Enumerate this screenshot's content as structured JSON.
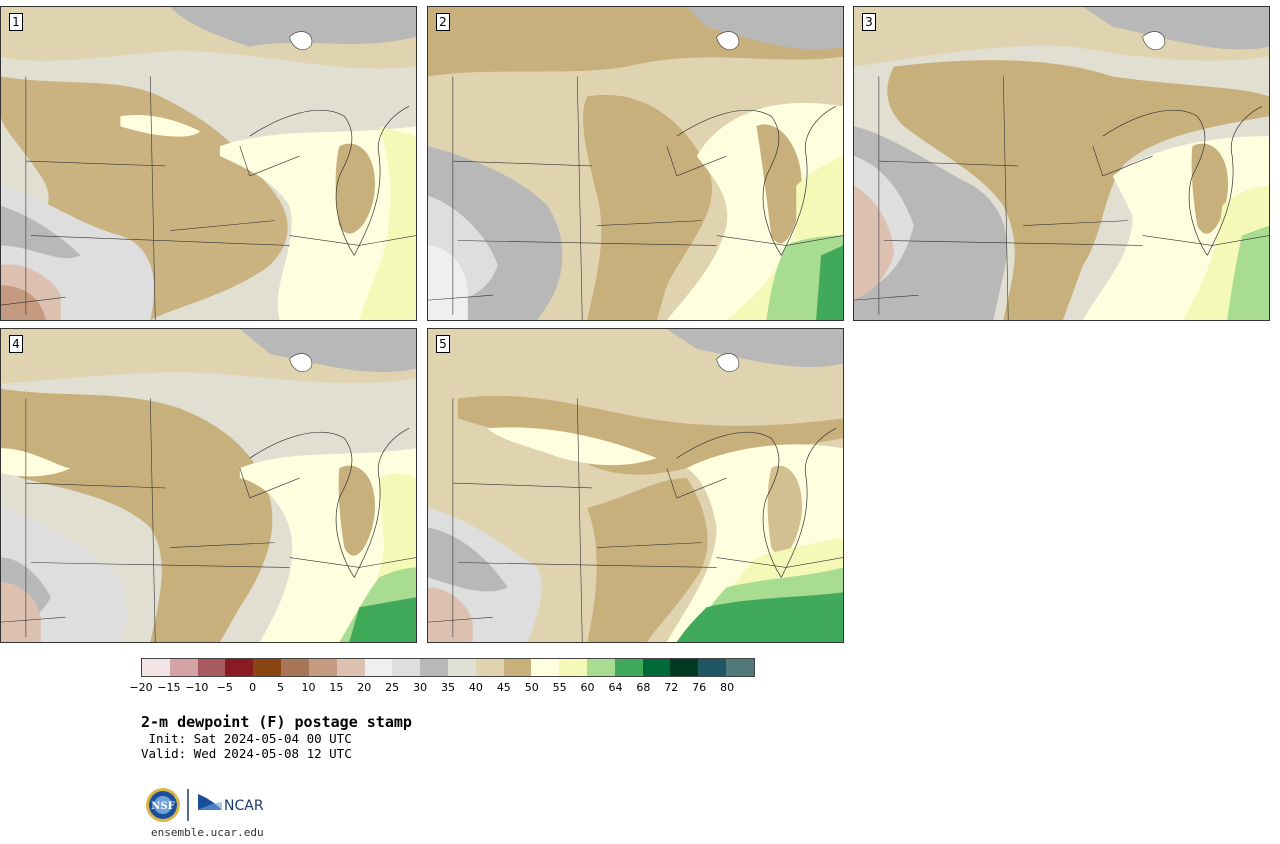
{
  "panels": [
    {
      "label": "1"
    },
    {
      "label": "2"
    },
    {
      "label": "3"
    },
    {
      "label": "4"
    },
    {
      "label": "5"
    }
  ],
  "legend": {
    "ticks": [
      "−20",
      "−15",
      "−10",
      "−5",
      "0",
      "5",
      "10",
      "15",
      "20",
      "25",
      "30",
      "35",
      "40",
      "45",
      "50",
      "55",
      "60",
      "64",
      "68",
      "72",
      "76",
      "80"
    ],
    "colors": [
      "#f2e4e4",
      "#d4a3a5",
      "#a85a5f",
      "#8b1a22",
      "#8b4513",
      "#a87657",
      "#c49b80",
      "#ddc1b0",
      "#efefef",
      "#dedede",
      "#b8b8b8",
      "#e0e0d4",
      "#e0d4b0",
      "#c8b07c",
      "#ffffe0",
      "#f5f9b8",
      "#a8dc90",
      "#40aa5a",
      "#006a3a",
      "#003a22",
      "#1e5664",
      "#507878"
    ]
  },
  "text": {
    "title": "2-m dewpoint (F) postage stamp",
    "init": " Init: Sat 2024-05-04 00 UTC",
    "valid": "Valid: Wed 2024-05-08 12 UTC",
    "url": "ensemble.ucar.edu"
  },
  "logos": {
    "nsf": "NSF",
    "ncar": "NCAR"
  }
}
